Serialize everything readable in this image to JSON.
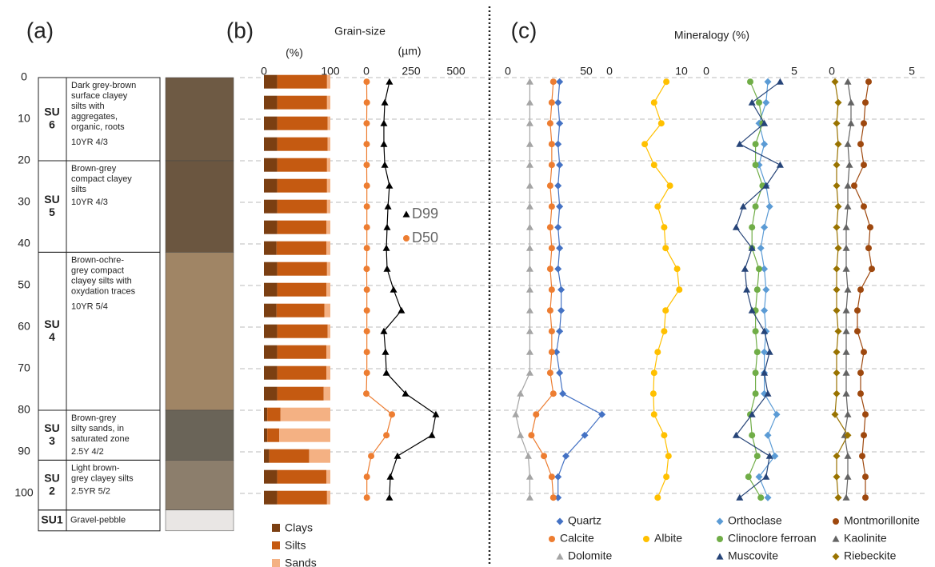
{
  "figure": {
    "panel_labels": [
      "(a)",
      "(b)",
      "(c)"
    ]
  },
  "log": {
    "layers": [
      {
        "unit_lines": [
          "SU",
          "6"
        ],
        "top": 0,
        "bottom": 20,
        "color": "#6e5a44",
        "description": [
          "Dark grey-brown",
          "surface clayey",
          "silts with",
          "aggregates,",
          "organic, roots"
        ],
        "color_code": "10YR 4/3"
      },
      {
        "unit_lines": [
          "SU",
          "5"
        ],
        "top": 20,
        "bottom": 42,
        "color": "#6b5640",
        "description": [
          "Brown-grey",
          "compact clayey",
          "silts"
        ],
        "color_code": "10YR 4/3"
      },
      {
        "unit_lines": [
          "SU",
          "4"
        ],
        "top": 42,
        "bottom": 80,
        "color": "#a08565",
        "description": [
          "Brown-ochre-",
          "grey compact",
          "clayey silts with",
          "oxydation traces"
        ],
        "color_code": "10YR 5/4"
      },
      {
        "unit_lines": [
          "SU",
          "3"
        ],
        "top": 80,
        "bottom": 92,
        "color": "#6a6458",
        "description": [
          "Brown-grey",
          "silty sands, in",
          "saturated zone"
        ],
        "color_code": "2.5Y 4/2"
      },
      {
        "unit_lines": [
          "SU",
          "2"
        ],
        "top": 92,
        "bottom": 104,
        "color": "#8c7e6c",
        "description": [
          "Light brown-",
          "grey clayey silts"
        ],
        "color_code": "2.5YR 5/2"
      },
      {
        "unit_lines": [
          "SU1"
        ],
        "top": 104,
        "bottom": 109,
        "color": "#e9e6e4",
        "description": [
          "Gravel-pebble"
        ]
      }
    ]
  },
  "depth_axis": {
    "ylim": [
      0,
      105
    ],
    "yticks": [
      0,
      10,
      20,
      30,
      40,
      50,
      60,
      70,
      80,
      90,
      100
    ],
    "grid": true,
    "samples": [
      1,
      6,
      11,
      16,
      21,
      26,
      31,
      36,
      41,
      46,
      51,
      56,
      61,
      66,
      71,
      76,
      81,
      86,
      91,
      96,
      101
    ]
  },
  "chart_data": [
    {
      "type": "stacked-bar",
      "title": "Grain-size",
      "xlabel": "(%)",
      "xlim": [
        0,
        100
      ],
      "xticks": [
        0,
        100
      ],
      "series": [
        {
          "name": "Clays",
          "color": "#7b3f12",
          "values": [
            20,
            20,
            20,
            20,
            20,
            20,
            20,
            20,
            19,
            20,
            20,
            19,
            20,
            20,
            20,
            20,
            5,
            5,
            8,
            20,
            20
          ]
        },
        {
          "name": "Silts",
          "color": "#c55a11",
          "values": [
            75,
            75,
            76,
            76,
            75,
            75,
            75,
            74,
            75,
            75,
            74,
            72,
            76,
            74,
            74,
            70,
            20,
            18,
            60,
            74,
            75
          ]
        },
        {
          "name": "Sands",
          "color": "#f4b183",
          "values": [
            5,
            5,
            4,
            4,
            5,
            5,
            5,
            6,
            6,
            5,
            6,
            9,
            4,
            6,
            6,
            10,
            75,
            77,
            32,
            6,
            5
          ]
        }
      ]
    },
    {
      "type": "line",
      "xlabel": "(µm)",
      "xlim": [
        0,
        500
      ],
      "xticks": [
        0,
        250,
        500
      ],
      "series": [
        {
          "name": "D99",
          "color": "#000000",
          "marker": "triangle",
          "values": [
            129,
            103,
            98,
            98,
            103,
            129,
            121,
            116,
            112,
            116,
            152,
            196,
            98,
            107,
            112,
            219,
            388,
            366,
            174,
            134,
            129
          ]
        },
        {
          "name": "D50",
          "color": "#ed7d31",
          "marker": "circle",
          "values": [
            2,
            3,
            2,
            2,
            2,
            3,
            3,
            3,
            3,
            2,
            3,
            3,
            3,
            3,
            3,
            0,
            143,
            112,
            27,
            3,
            3
          ]
        }
      ]
    },
    {
      "type": "line",
      "title": "Mineralogy (%)",
      "xlim": [
        0,
        62
      ],
      "xticks": [
        0,
        50
      ],
      "series": [
        {
          "name": "Quartz",
          "color": "#4472c4",
          "marker": "diamond",
          "values": [
            33,
            32,
            33,
            32,
            33,
            32,
            33,
            32,
            33,
            32,
            34,
            34,
            33,
            31,
            33,
            35,
            60,
            49,
            37,
            32,
            32
          ]
        },
        {
          "name": "Calcite",
          "color": "#ed7d31",
          "marker": "circle",
          "values": [
            29,
            28,
            27,
            28,
            28,
            27,
            28,
            27,
            28,
            27,
            28,
            27,
            28,
            28,
            27,
            29,
            18,
            15,
            23,
            28,
            29
          ]
        },
        {
          "name": "Dolomite",
          "color": "#a5a5a5",
          "marker": "triangle",
          "values": [
            14,
            14,
            14,
            14,
            14,
            14,
            14,
            14,
            14,
            14,
            14,
            14,
            14,
            14,
            14,
            8,
            5,
            8,
            13,
            14,
            14
          ]
        }
      ]
    },
    {
      "type": "line",
      "xlim": [
        0,
        12
      ],
      "xticks": [
        0,
        10
      ],
      "series": [
        {
          "name": "Albite",
          "color": "#ffc000",
          "marker": "circle",
          "values": [
            7.9,
            6.2,
            7.2,
            4.9,
            6.2,
            8.4,
            6.7,
            7.6,
            7.8,
            9.4,
            9.7,
            7.8,
            7.6,
            6.7,
            6.2,
            6.1,
            6.2,
            7.6,
            8.2,
            7.9,
            6.7
          ]
        }
      ]
    },
    {
      "type": "line",
      "xlim": [
        0,
        5.5
      ],
      "xticks": [
        0,
        5
      ],
      "series": [
        {
          "name": "Orthoclase",
          "color": "#5b9bd5",
          "marker": "diamond",
          "values": [
            3.5,
            3.4,
            3.0,
            3.3,
            3.0,
            3.4,
            3.6,
            3.3,
            3.1,
            3.3,
            3.4,
            3.3,
            3.4,
            3.3,
            3.3,
            3.3,
            4.0,
            3.5,
            3.9,
            3.0,
            3.5
          ]
        },
        {
          "name": "Clinoclore ferroan",
          "color": "#70ad47",
          "marker": "circle",
          "values": [
            2.5,
            3.0,
            3.2,
            2.8,
            2.8,
            3.2,
            2.8,
            2.6,
            2.6,
            3.0,
            2.9,
            2.8,
            2.8,
            2.9,
            2.8,
            2.8,
            2.5,
            2.6,
            2.9,
            2.4,
            3.1
          ]
        },
        {
          "name": "Muscovite",
          "color": "#264478",
          "marker": "triangle",
          "values": [
            4.2,
            2.6,
            3.3,
            1.9,
            4.2,
            3.4,
            2.1,
            1.7,
            2.6,
            2.2,
            2.3,
            2.6,
            3.3,
            3.6,
            3.3,
            3.5,
            2.6,
            1.7,
            3.6,
            3.4,
            1.9
          ]
        }
      ]
    },
    {
      "type": "line",
      "xlim": [
        0,
        5.5
      ],
      "xticks": [
        0,
        5
      ],
      "series": [
        {
          "name": "Montmorillonite",
          "color": "#9e480e",
          "marker": "circle",
          "values": [
            2.3,
            2.1,
            2.0,
            1.8,
            2.0,
            1.4,
            2.0,
            2.4,
            2.3,
            2.5,
            1.8,
            1.6,
            1.6,
            2.0,
            1.8,
            1.8,
            2.1,
            2.0,
            1.9,
            2.1,
            2.1
          ]
        },
        {
          "name": "Kaolinite",
          "color": "#636363",
          "marker": "triangle",
          "values": [
            1.0,
            1.2,
            1.2,
            1.0,
            1.1,
            1.0,
            1.0,
            0.9,
            0.9,
            0.9,
            1.0,
            0.9,
            0.9,
            0.9,
            0.9,
            0.9,
            1.0,
            0.8,
            1.0,
            1.0,
            0.9
          ]
        },
        {
          "name": "Riebeckite",
          "color": "#997300",
          "marker": "diamond",
          "values": [
            0.2,
            0.4,
            0.3,
            0.4,
            0.3,
            0.3,
            0.4,
            0.3,
            0.4,
            0.3,
            0.3,
            0.3,
            0.4,
            0.3,
            0.3,
            0.3,
            0.2,
            1.0,
            0.3,
            0.3,
            0.4
          ]
        }
      ]
    }
  ]
}
